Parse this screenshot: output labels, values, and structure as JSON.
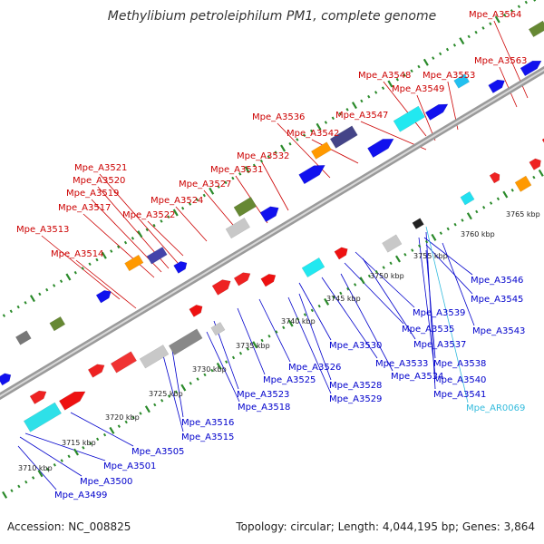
{
  "title": "Methylibium petroleiphilum PM1, complete genome",
  "footer": {
    "accession": "Accession: NC_008825",
    "info": "Topology: circular; Length: 4,044,195 bp; Genes: 3,864"
  },
  "colors": {
    "top_label": "#cc0000",
    "bottom_label": "#0000cc",
    "rna_label": "#33bbdd",
    "backbone": "#9a9a9a",
    "tick_green": "#2a8a2a"
  },
  "scale_labels": [
    "3710 kbp",
    "3715 kbp",
    "3720 kbp",
    "3725 kbp",
    "3730 kbp",
    "3735 kbp",
    "3740 kbp",
    "3745 kbp",
    "3750 kbp",
    "3755 kbp",
    "3760 kbp",
    "3765 kbp"
  ],
  "top_labels": [
    "Mpe_A3564",
    "Mpe_A3563",
    "Mpe_A3548",
    "Mpe_A3553",
    "Mpe_A3549",
    "Mpe_A3547",
    "Mpe_A3536",
    "Mpe_A3542",
    "Mpe_A3532",
    "Mpe_A3531",
    "Mpe_A3521",
    "Mpe_A3520",
    "Mpe_A3527",
    "Mpe_A3519",
    "Mpe_A3524",
    "Mpe_A3517",
    "Mpe_A3522",
    "Mpe_A3513",
    "Mpe_A3514"
  ],
  "bottom_labels": [
    "Mpe_A3546",
    "Mpe_A3545",
    "Mpe_A3539",
    "Mpe_A3543",
    "Mpe_A3535",
    "Mpe_A3537",
    "Mpe_A3530",
    "Mpe_A3533",
    "Mpe_A3538",
    "Mpe_A3534",
    "Mpe_A3526",
    "Mpe_A3540",
    "Mpe_A3528",
    "Mpe_A3525",
    "Mpe_A3541",
    "Mpe_A3529",
    "Mpe_A3523",
    "Mpe_AR0069",
    "Mpe_A3518",
    "Mpe_A3516",
    "Mpe_A3515",
    "Mpe_A3505",
    "Mpe_A3501",
    "Mpe_A3500",
    "Mpe_A3499"
  ]
}
